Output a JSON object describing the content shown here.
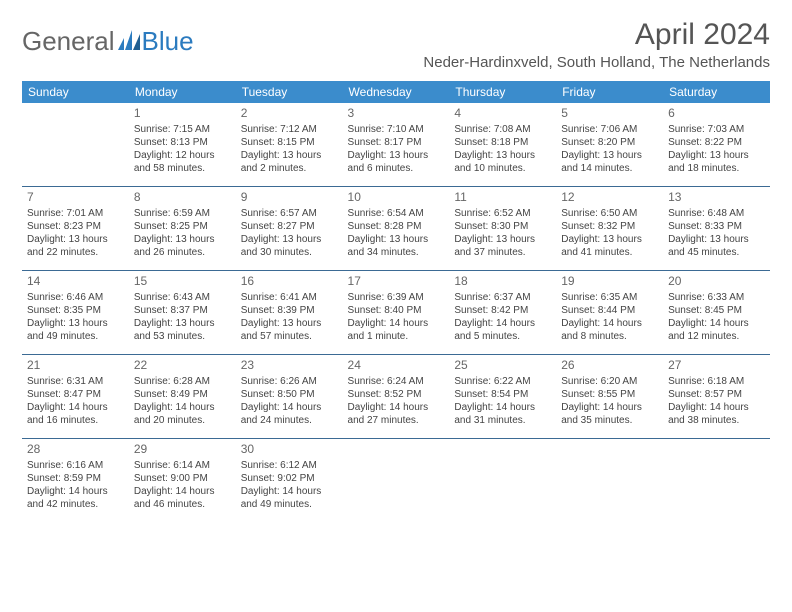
{
  "logo": {
    "text1": "General",
    "text2": "Blue"
  },
  "month": "April 2024",
  "location": "Neder-Hardinxveld, South Holland, The Netherlands",
  "colors": {
    "header_bg": "#3b8ccc",
    "header_text": "#ffffff",
    "rule": "#3b6a94",
    "brand_blue": "#2b7bbf",
    "text": "#444444"
  },
  "weekdays": [
    "Sunday",
    "Monday",
    "Tuesday",
    "Wednesday",
    "Thursday",
    "Friday",
    "Saturday"
  ],
  "firstDayOffset": 1,
  "days": [
    {
      "n": "1",
      "sr": "7:15 AM",
      "ss": "8:13 PM",
      "dl": "12 hours and 58 minutes."
    },
    {
      "n": "2",
      "sr": "7:12 AM",
      "ss": "8:15 PM",
      "dl": "13 hours and 2 minutes."
    },
    {
      "n": "3",
      "sr": "7:10 AM",
      "ss": "8:17 PM",
      "dl": "13 hours and 6 minutes."
    },
    {
      "n": "4",
      "sr": "7:08 AM",
      "ss": "8:18 PM",
      "dl": "13 hours and 10 minutes."
    },
    {
      "n": "5",
      "sr": "7:06 AM",
      "ss": "8:20 PM",
      "dl": "13 hours and 14 minutes."
    },
    {
      "n": "6",
      "sr": "7:03 AM",
      "ss": "8:22 PM",
      "dl": "13 hours and 18 minutes."
    },
    {
      "n": "7",
      "sr": "7:01 AM",
      "ss": "8:23 PM",
      "dl": "13 hours and 22 minutes."
    },
    {
      "n": "8",
      "sr": "6:59 AM",
      "ss": "8:25 PM",
      "dl": "13 hours and 26 minutes."
    },
    {
      "n": "9",
      "sr": "6:57 AM",
      "ss": "8:27 PM",
      "dl": "13 hours and 30 minutes."
    },
    {
      "n": "10",
      "sr": "6:54 AM",
      "ss": "8:28 PM",
      "dl": "13 hours and 34 minutes."
    },
    {
      "n": "11",
      "sr": "6:52 AM",
      "ss": "8:30 PM",
      "dl": "13 hours and 37 minutes."
    },
    {
      "n": "12",
      "sr": "6:50 AM",
      "ss": "8:32 PM",
      "dl": "13 hours and 41 minutes."
    },
    {
      "n": "13",
      "sr": "6:48 AM",
      "ss": "8:33 PM",
      "dl": "13 hours and 45 minutes."
    },
    {
      "n": "14",
      "sr": "6:46 AM",
      "ss": "8:35 PM",
      "dl": "13 hours and 49 minutes."
    },
    {
      "n": "15",
      "sr": "6:43 AM",
      "ss": "8:37 PM",
      "dl": "13 hours and 53 minutes."
    },
    {
      "n": "16",
      "sr": "6:41 AM",
      "ss": "8:39 PM",
      "dl": "13 hours and 57 minutes."
    },
    {
      "n": "17",
      "sr": "6:39 AM",
      "ss": "8:40 PM",
      "dl": "14 hours and 1 minute."
    },
    {
      "n": "18",
      "sr": "6:37 AM",
      "ss": "8:42 PM",
      "dl": "14 hours and 5 minutes."
    },
    {
      "n": "19",
      "sr": "6:35 AM",
      "ss": "8:44 PM",
      "dl": "14 hours and 8 minutes."
    },
    {
      "n": "20",
      "sr": "6:33 AM",
      "ss": "8:45 PM",
      "dl": "14 hours and 12 minutes."
    },
    {
      "n": "21",
      "sr": "6:31 AM",
      "ss": "8:47 PM",
      "dl": "14 hours and 16 minutes."
    },
    {
      "n": "22",
      "sr": "6:28 AM",
      "ss": "8:49 PM",
      "dl": "14 hours and 20 minutes."
    },
    {
      "n": "23",
      "sr": "6:26 AM",
      "ss": "8:50 PM",
      "dl": "14 hours and 24 minutes."
    },
    {
      "n": "24",
      "sr": "6:24 AM",
      "ss": "8:52 PM",
      "dl": "14 hours and 27 minutes."
    },
    {
      "n": "25",
      "sr": "6:22 AM",
      "ss": "8:54 PM",
      "dl": "14 hours and 31 minutes."
    },
    {
      "n": "26",
      "sr": "6:20 AM",
      "ss": "8:55 PM",
      "dl": "14 hours and 35 minutes."
    },
    {
      "n": "27",
      "sr": "6:18 AM",
      "ss": "8:57 PM",
      "dl": "14 hours and 38 minutes."
    },
    {
      "n": "28",
      "sr": "6:16 AM",
      "ss": "8:59 PM",
      "dl": "14 hours and 42 minutes."
    },
    {
      "n": "29",
      "sr": "6:14 AM",
      "ss": "9:00 PM",
      "dl": "14 hours and 46 minutes."
    },
    {
      "n": "30",
      "sr": "6:12 AM",
      "ss": "9:02 PM",
      "dl": "14 hours and 49 minutes."
    }
  ],
  "labels": {
    "sunrise": "Sunrise:",
    "sunset": "Sunset:",
    "daylight": "Daylight:"
  }
}
